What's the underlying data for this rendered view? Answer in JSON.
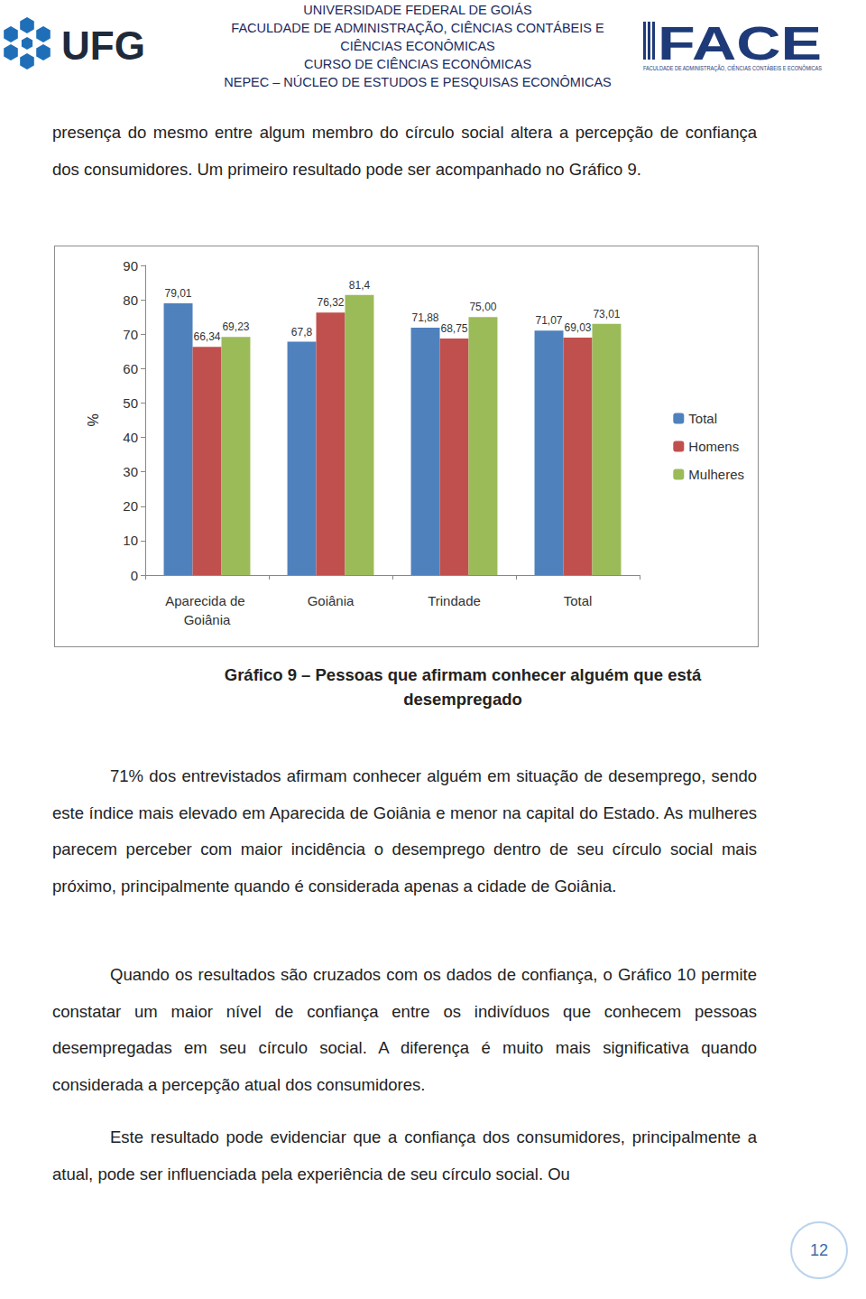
{
  "header": {
    "left_logo": "UFG",
    "lines": [
      "UNIVERSIDADE FEDERAL DE GOIÁS",
      "FACULDADE DE ADMINISTRAÇÃO, CIÊNCIAS CONTÁBEIS E",
      "CIÊNCIAS ECONÔMICAS",
      "CURSO DE CIÊNCIAS ECONÔMICAS",
      "NEPEC – NÚCLEO DE ESTUDOS E PESQUISAS ECONÔMICAS"
    ],
    "right_logo": "FACE",
    "right_logo_subtitle": "FACULDADE DE ADMINISTRAÇÃO, CIÊNCIAS CONTÁBEIS E ECONÔMICAS"
  },
  "paragraphs_before": [
    "presença do mesmo entre algum membro do círculo social altera a percepção de confiança dos consumidores. Um primeiro resultado pode ser acompanhado no Gráfico 9."
  ],
  "chart_data": {
    "type": "bar",
    "y_label": "%",
    "categories": [
      "Aparecida de Goiânia",
      "Goiânia",
      "Trindade",
      "Total"
    ],
    "series": [
      {
        "name": "Total",
        "color": "#4f81bd",
        "values": [
          79.01,
          67.8,
          71.88,
          71.07
        ],
        "value_labels": [
          "79,01",
          "67,8",
          "71,88",
          "71,07"
        ]
      },
      {
        "name": "Homens",
        "color": "#c0504d",
        "values": [
          66.34,
          76.32,
          68.75,
          69.03
        ],
        "value_labels": [
          "66,34",
          "76,32",
          "68,75",
          "69,03"
        ]
      },
      {
        "name": "Mulheres",
        "color": "#9bbb59",
        "values": [
          69.23,
          81.4,
          75.0,
          73.01
        ],
        "value_labels": [
          "69,23",
          "81,4",
          "75,00",
          "73,01"
        ]
      }
    ],
    "ylim": [
      0,
      90
    ],
    "yticks": [
      0,
      10,
      20,
      30,
      40,
      50,
      60,
      70,
      80,
      90
    ],
    "grid": false,
    "legend": "right",
    "data_labels": true
  },
  "caption": "Gráfico 9 – Pessoas que afirmam conhecer alguém que está desempregado",
  "paragraphs_after": [
    "71% dos entrevistados afirmam conhecer alguém em situação de desemprego, sendo este índice mais elevado em Aparecida de Goiânia e menor na capital do Estado. As mulheres parecem perceber com maior incidência o desemprego dentro de seu círculo social mais próximo, principalmente quando é considerada apenas a cidade de Goiânia.",
    "Quando os resultados são cruzados com os dados de confiança, o Gráfico 10 permite constatar um maior nível de confiança entre os indivíduos que conhecem pessoas desempregadas em seu círculo social. A diferença é muito mais significativa quando considerada a percepção atual dos consumidores.",
    "Este resultado pode evidenciar que a confiança dos consumidores, principalmente a atual, pode ser influenciada pela experiência de seu círculo social. Ou"
  ],
  "page_number": "12"
}
